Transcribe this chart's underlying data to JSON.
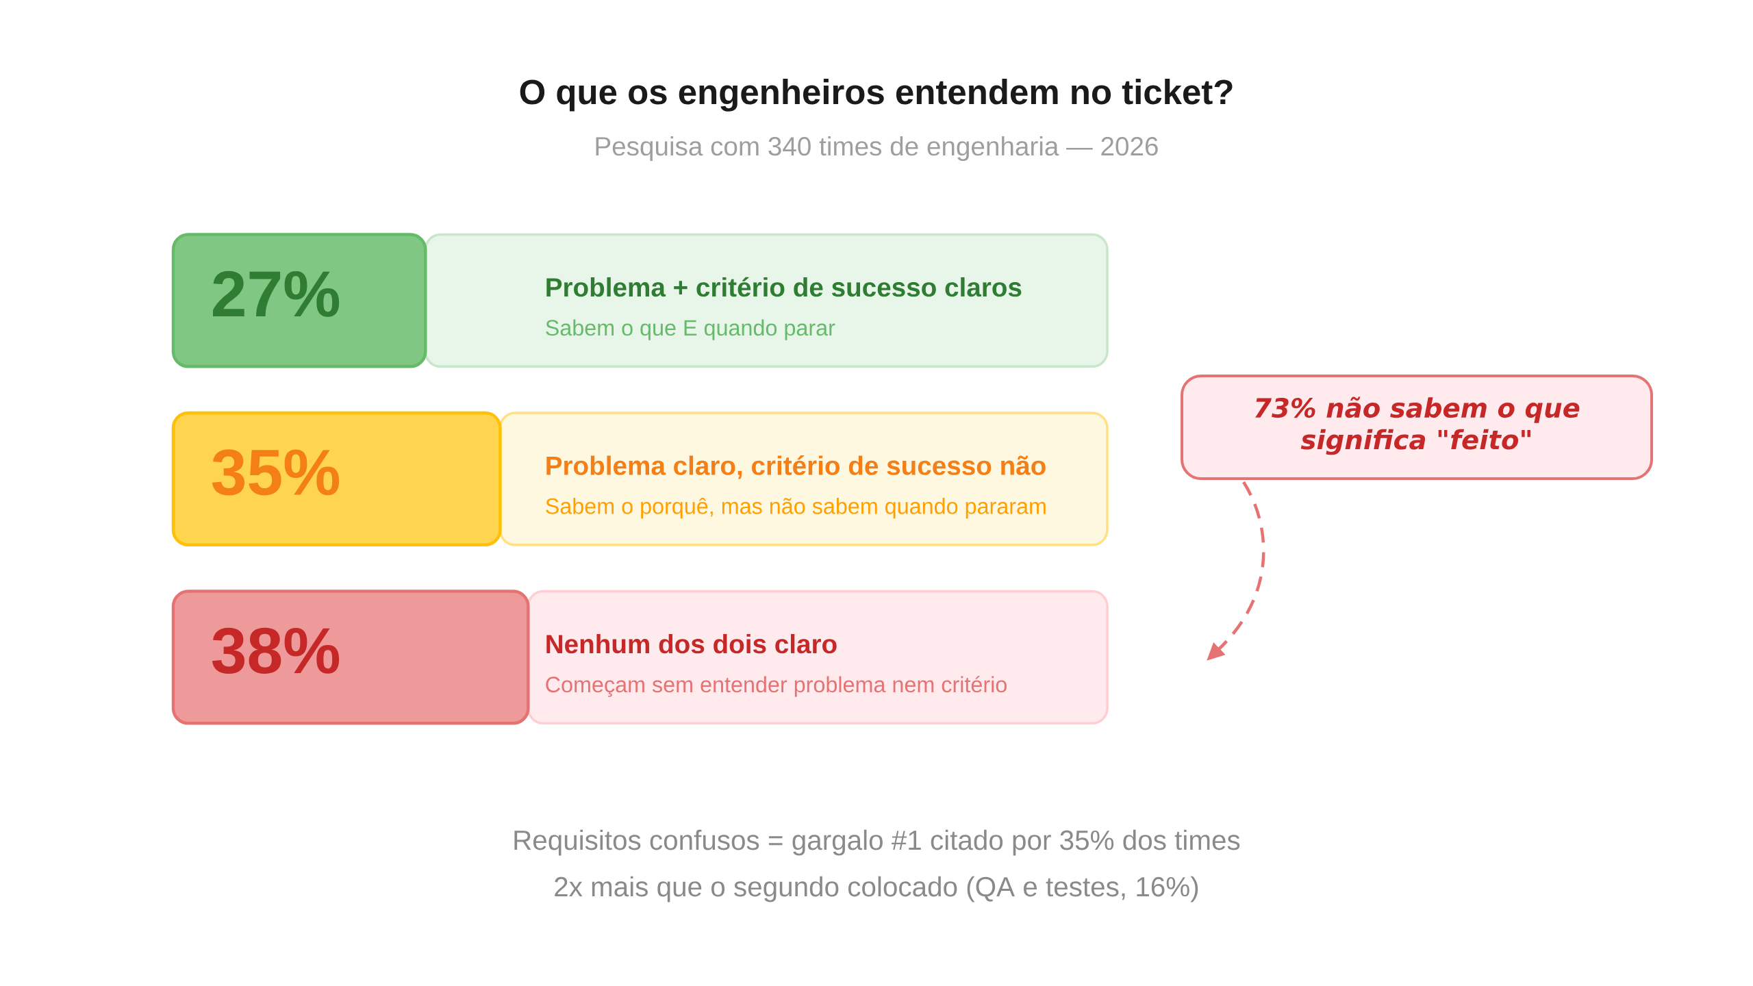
{
  "chart_data": {
    "type": "bar",
    "orientation": "horizontal",
    "stacked": true,
    "title": "O que os engenheiros entendem no ticket?",
    "subtitle": "Pesquisa com 340 times de engenharia — 2026",
    "categories": [
      "Problema + critério de sucesso claros",
      "Problema claro, critério de sucesso não",
      "Nenhum dos dois claro"
    ],
    "series": [
      {
        "values": [
          27,
          35,
          38
        ],
        "colors": [
          "#81c784",
          "#ffd54f",
          "#ef9a9a"
        ],
        "value_labels": [
          "27%",
          "35%",
          "38%"
        ]
      },
      {
        "values": [
          73,
          65,
          62
        ],
        "colors": [
          "#e8f5e9",
          "#fff8e1",
          "#ffebee"
        ]
      }
    ],
    "xlim": [
      0,
      100
    ],
    "tick_labels": false,
    "annotations": [
      {
        "text": "Sabem o que E quando parar",
        "y": "Problema + critério de sucesso claros"
      },
      {
        "text": "Sabem o porquê, mas não sabem quando pararam",
        "y": "Problema claro, critério de sucesso não"
      },
      {
        "text": "Começam sem entender problema nem critério",
        "y": "Nenhum dos dois claro"
      },
      "73% não sabem o que significa \"feito\"",
      "Requisitos confusos = gargalo #1 citado por 35% dos times",
      "2x mais que o segundo colocado (QA e testes, 16%)"
    ]
  }
}
